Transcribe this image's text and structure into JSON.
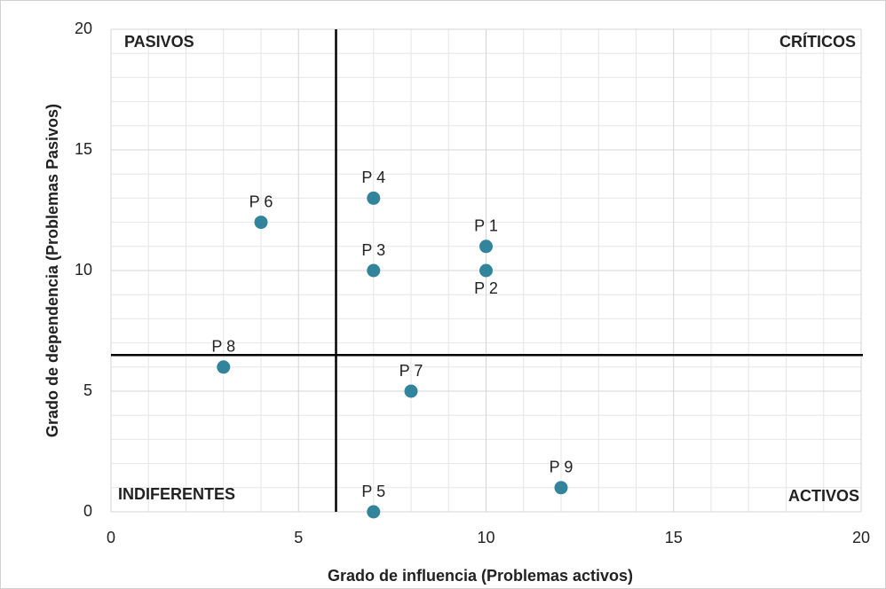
{
  "chart_data": {
    "type": "scatter",
    "xlabel": "Grado de  influencia  (Problemas activos)",
    "ylabel": "Grado de dependencia (Problemas Pasivos)",
    "labels": [
      "P 1",
      "P 2",
      "P 3",
      "P 4",
      "P 5",
      "P 6",
      "P 7",
      "P 8",
      "P 9"
    ],
    "x": [
      10,
      10,
      7,
      7,
      7,
      4,
      8,
      3,
      12
    ],
    "y": [
      11,
      10,
      10,
      13,
      0,
      12,
      5,
      6,
      1
    ],
    "color": "#31849b",
    "xlim": [
      0,
      20
    ],
    "ylim": [
      0,
      20
    ],
    "xticks": [
      0,
      5,
      10,
      15,
      20
    ],
    "yticks": [
      0,
      5,
      10,
      15,
      20
    ],
    "grid": true,
    "reference_lines": {
      "x": 6,
      "y": 6.5
    },
    "annotations": [
      {
        "text": "PASIVOS",
        "corner": "top-left"
      },
      {
        "text": "CRÍTICOS",
        "corner": "top-right"
      },
      {
        "text": "INDIFERENTES",
        "corner": "bottom-left"
      },
      {
        "text": "ACTIVOS",
        "corner": "bottom-right"
      }
    ]
  }
}
